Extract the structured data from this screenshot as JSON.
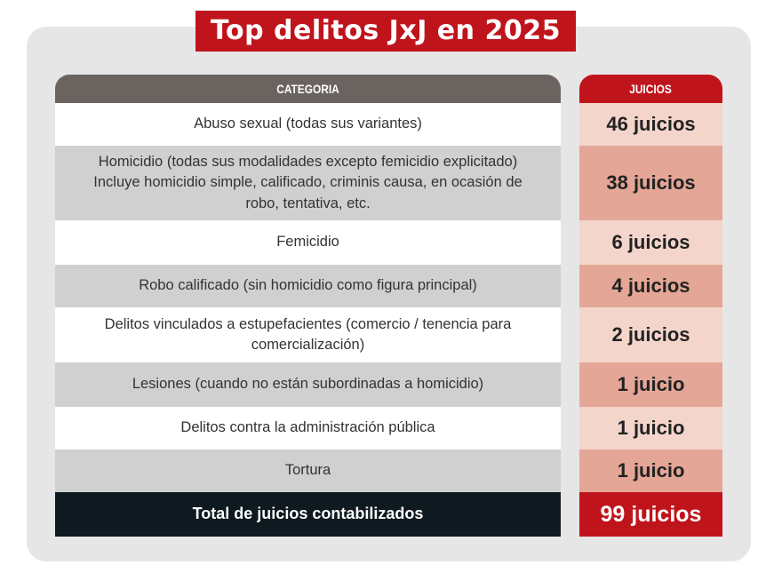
{
  "title": "Top delitos JxJ en 2025",
  "headers": {
    "category": "CATEGORIA",
    "trials": "JUICIOS"
  },
  "rows": [
    {
      "category": "Abuso sexual (todas sus variantes)",
      "trials": "46 juicios",
      "count": 46
    },
    {
      "category": "Homicidio (todas sus modalidades excepto femicidio explicitado) Incluye homicidio simple, calificado, criminis causa, en ocasión de robo, tentativa, etc.",
      "trials": "38 juicios",
      "count": 38
    },
    {
      "category": "Femicidio",
      "trials": "6 juicios",
      "count": 6
    },
    {
      "category": "Robo calificado (sin homicidio como figura principal)",
      "trials": "4 juicios",
      "count": 4
    },
    {
      "category": "Delitos vinculados a estupefacientes (comercio / tenencia para comercialización)",
      "trials": "2 juicios",
      "count": 2
    },
    {
      "category": "Lesiones (cuando no están subordinadas a homicidio)",
      "trials": "1 juicio",
      "count": 1
    },
    {
      "category": "Delitos contra la administración pública",
      "trials": "1 juicio",
      "count": 1
    },
    {
      "category": "Tortura",
      "trials": "1 juicio",
      "count": 1
    }
  ],
  "total": {
    "label": "Total de juicios contabilizados",
    "value": "99 juicios",
    "count": 99
  },
  "colors": {
    "accent_red": "#c0141c",
    "header_gray": "#6a6360",
    "total_dark": "#0e1a20",
    "row_light": "#ffffff",
    "row_dark": "#d0d0d0",
    "value_light": "#f4d5cb",
    "value_dark": "#e4a696"
  }
}
